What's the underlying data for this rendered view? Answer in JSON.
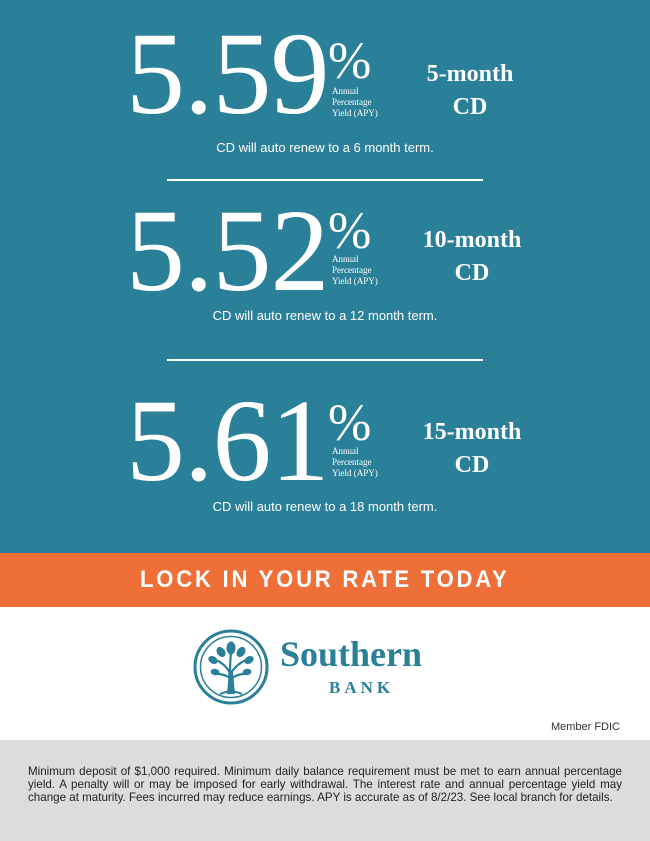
{
  "rates": [
    {
      "rate": "5.59",
      "percent_sign": "%",
      "apy_caption": "Annual\nPercentage\nYield (APY)",
      "term": "5-month\nCD",
      "renewal_note": "CD will auto renew to a 6 month term."
    },
    {
      "rate": "5.52",
      "percent_sign": "%",
      "apy_caption": "Annual\nPercentage\nYield (APY)",
      "term": "10-month\nCD",
      "renewal_note": "CD will auto renew to a 12 month term."
    },
    {
      "rate": "5.61",
      "percent_sign": "%",
      "apy_caption": "Annual\nPercentage\nYield (APY)",
      "term": "15-month\nCD",
      "renewal_note": "CD will auto renew to a 18 month term."
    }
  ],
  "cta": {
    "text": "LOCK IN YOUR RATE TODAY"
  },
  "logo": {
    "name": "Southern",
    "subname": "BANK",
    "icon": "tree-emblem-icon"
  },
  "member_fdic": "Member FDIC",
  "disclaimer": "Minimum deposit of $1,000 required. Minimum daily balance requirement must be met to earn annual percentage yield. A penalty will or may be imposed for early withdrawal. The interest rate and annual percentage yield may change at maturity. Fees incurred may reduce earnings. APY is accurate as of 8/2/23. See local branch for details.",
  "colors": {
    "teal": "#2a7f99",
    "orange": "#ee6f37",
    "gray": "#dcdcdc",
    "white": "#ffffff"
  }
}
